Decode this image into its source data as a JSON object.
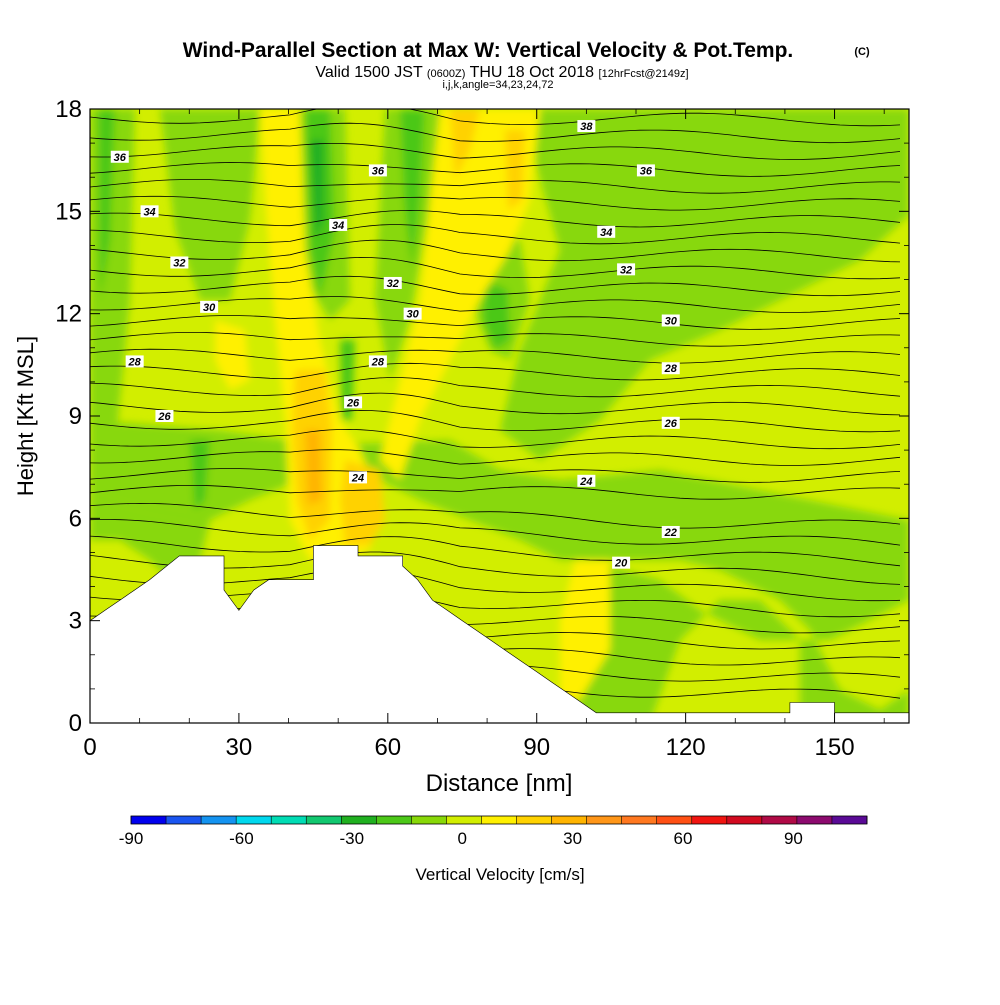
{
  "title_line1": "Wind-Parallel Section at Max W: Vertical Velocity & Pot.Temp.",
  "title_unit": "(C)",
  "subtitle_valid": "Valid 1500 JST",
  "subtitle_utc": "(0600Z)",
  "subtitle_date": "THU 18 Oct 2018",
  "subtitle_fcst": "[12hrFcst@2149z]",
  "subtitle_line3": "i,j,k,angle=34,23,24,72",
  "chart_data": {
    "type": "heatmap",
    "subtype": "cross-section contour",
    "xlabel": "Distance [nm]",
    "ylabel": "Height [Kft MSL]",
    "xlim": [
      0,
      165
    ],
    "ylim": [
      0,
      18
    ],
    "x_ticks": [
      0,
      30,
      60,
      90,
      120,
      150
    ],
    "y_ticks": [
      0,
      3,
      6,
      9,
      12,
      15,
      18
    ],
    "colorbar": {
      "label": "Vertical Velocity [cm/s]",
      "min": -90,
      "max": 110,
      "step": 10,
      "tick_values": [
        -90,
        -60,
        -30,
        0,
        30,
        60,
        90
      ],
      "colors": [
        "#0000ee",
        "#1a55f0",
        "#1493f0",
        "#00d8ee",
        "#00dcb4",
        "#12c870",
        "#20b020",
        "#4cc818",
        "#88d808",
        "#d2ee00",
        "#fff000",
        "#ffd200",
        "#ffb400",
        "#ff9618",
        "#ff7820",
        "#ff5014",
        "#f01410",
        "#d20a20",
        "#b00a46",
        "#8c0a6e",
        "#5a0a96"
      ]
    },
    "terrain_profile": [
      [
        0,
        3
      ],
      [
        3,
        3.3
      ],
      [
        6,
        3.6
      ],
      [
        9,
        3.9
      ],
      [
        12,
        4.2
      ],
      [
        18,
        4.9
      ],
      [
        27,
        4.9
      ],
      [
        27,
        3.9
      ],
      [
        30,
        3.3
      ],
      [
        33,
        3.9
      ],
      [
        36,
        4.2
      ],
      [
        45,
        4.2
      ],
      [
        45,
        5.2
      ],
      [
        54,
        5.2
      ],
      [
        54,
        4.9
      ],
      [
        63,
        4.9
      ],
      [
        63,
        4.6
      ],
      [
        66,
        4.2
      ],
      [
        69,
        3.6
      ],
      [
        72,
        3.3
      ],
      [
        75,
        3
      ],
      [
        78,
        2.7
      ],
      [
        81,
        2.4
      ],
      [
        84,
        2.1
      ],
      [
        87,
        1.8
      ],
      [
        90,
        1.5
      ],
      [
        93,
        1.2
      ],
      [
        96,
        0.9
      ],
      [
        99,
        0.6
      ],
      [
        102,
        0.3
      ],
      [
        141,
        0.3
      ],
      [
        141,
        0.6
      ],
      [
        150,
        0.6
      ],
      [
        150,
        0.3
      ],
      [
        165,
        0.3
      ]
    ],
    "isentropes_C": [
      20,
      22,
      24,
      26,
      28,
      30,
      32,
      34,
      36,
      38
    ],
    "isentrope_labels": [
      {
        "text": "36",
        "x": 6,
        "y": 16.6
      },
      {
        "text": "34",
        "x": 12,
        "y": 15
      },
      {
        "text": "32",
        "x": 18,
        "y": 13.5
      },
      {
        "text": "30",
        "x": 24,
        "y": 12.2
      },
      {
        "text": "28",
        "x": 9,
        "y": 10.6
      },
      {
        "text": "26",
        "x": 15,
        "y": 9
      },
      {
        "text": "34",
        "x": 50,
        "y": 14.6
      },
      {
        "text": "36",
        "x": 58,
        "y": 16.2
      },
      {
        "text": "32",
        "x": 61,
        "y": 12.9
      },
      {
        "text": "30",
        "x": 65,
        "y": 12
      },
      {
        "text": "28",
        "x": 58,
        "y": 10.6
      },
      {
        "text": "26",
        "x": 53,
        "y": 9.4
      },
      {
        "text": "24",
        "x": 54,
        "y": 7.2
      },
      {
        "text": "38",
        "x": 100,
        "y": 17.5
      },
      {
        "text": "36",
        "x": 112,
        "y": 16.2
      },
      {
        "text": "34",
        "x": 104,
        "y": 14.4
      },
      {
        "text": "32",
        "x": 108,
        "y": 13.3
      },
      {
        "text": "30",
        "x": 117,
        "y": 11.8
      },
      {
        "text": "28",
        "x": 117,
        "y": 10.4
      },
      {
        "text": "26",
        "x": 117,
        "y": 8.8
      },
      {
        "text": "24",
        "x": 100,
        "y": 7.1
      },
      {
        "text": "22",
        "x": 117,
        "y": 5.6
      },
      {
        "text": "20",
        "x": 107,
        "y": 4.7
      }
    ]
  }
}
